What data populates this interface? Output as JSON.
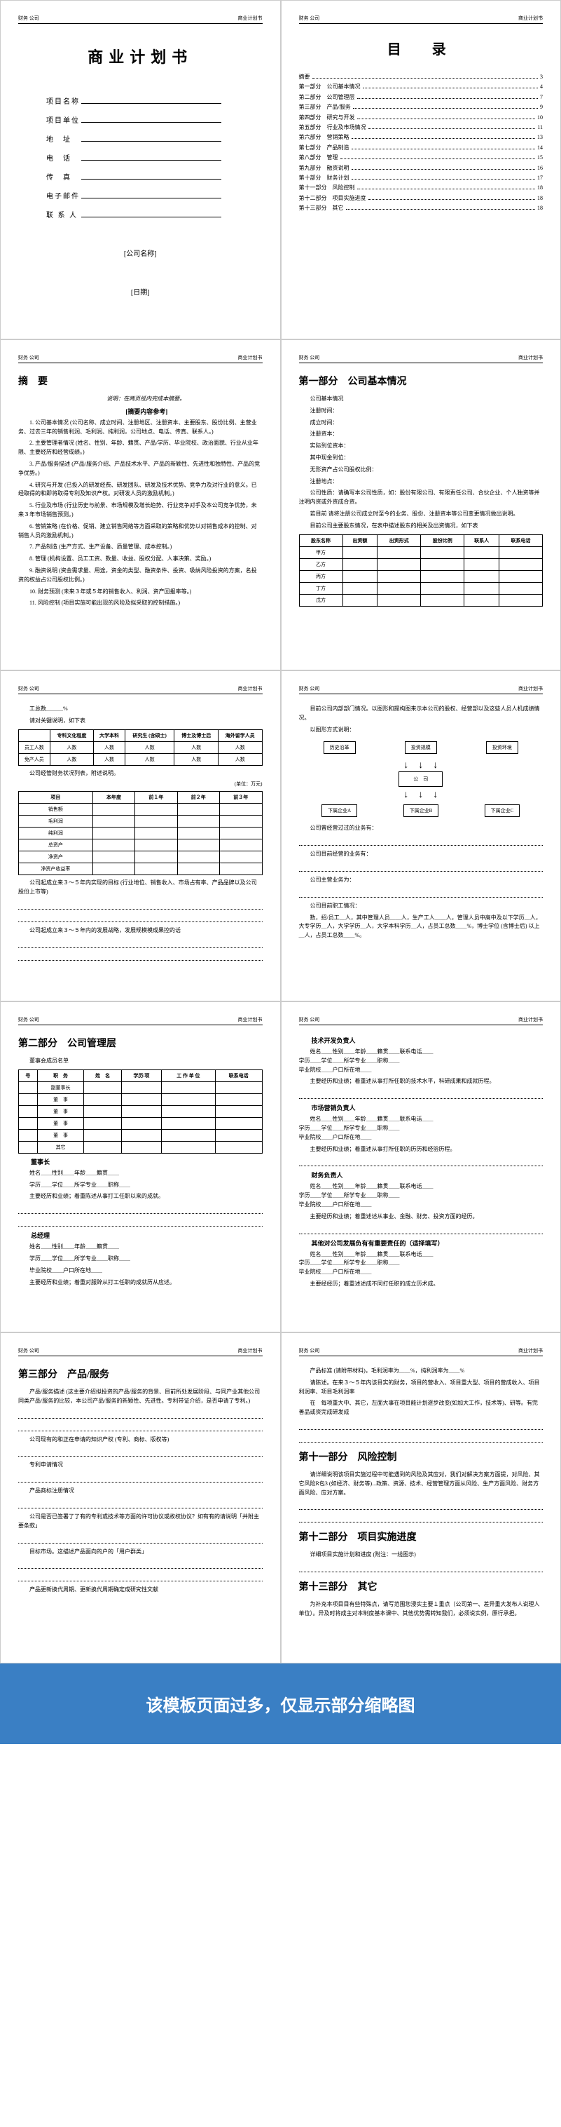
{
  "header": {
    "left": "财务 公司",
    "right": "商业计划书"
  },
  "p1": {
    "title": "商业计划书",
    "fields": [
      "项目名称",
      "项目单位",
      "地　址",
      "电　话",
      "传　真",
      "电子邮件",
      "联 系 人"
    ],
    "company": "[公司名称]",
    "date": "[日期]"
  },
  "p2": {
    "title": "目　录",
    "items": [
      {
        "t": "摘要",
        "p": "3"
      },
      {
        "t": "第一部分　公司基本情况",
        "p": "4"
      },
      {
        "t": "第二部分　公司管理层",
        "p": "7"
      },
      {
        "t": "第三部分　产品/服务",
        "p": "9"
      },
      {
        "t": "第四部分　研究与开发",
        "p": "10"
      },
      {
        "t": "第五部分　行业及市场情况",
        "p": "11"
      },
      {
        "t": "第六部分　营销策略",
        "p": "13"
      },
      {
        "t": "第七部分　产品制造",
        "p": "14"
      },
      {
        "t": "第八部分　管理",
        "p": "15"
      },
      {
        "t": "第九部分　融资说明",
        "p": "16"
      },
      {
        "t": "第十部分　财务计划",
        "p": "17"
      },
      {
        "t": "第十一部分　风险控制",
        "p": "18"
      },
      {
        "t": "第十二部分　项目实施进度",
        "p": "18"
      },
      {
        "t": "第十三部分　其它",
        "p": "18"
      }
    ]
  },
  "p3": {
    "title": "摘　要",
    "note": "说明：在两页纸内完成本摘要。",
    "ref": "[摘要内容参考]",
    "items": [
      "1. 公司基本情况 (公司名称、成立时间、注册地区、注册资本、主要股东、股份比例、主营业务、过去三年的销售利润、毛利润、纯利润，公司地点、电话、传真、联系人。)",
      "2. 主要管理者情况 (姓名、性别、年龄、籍贯、产品/学历、毕业院校、政治面貌、行业从业年限、主要经历和经营成绩。)",
      "3. 产品/服务描述 (产品/服务介绍、产品技术水平、产品的新颖性、先进性和独特性、产品的竞争优势。)",
      "4. 研究与开发 (已投入的研发经费、研发团队、研发及技术优势、竞争力及对行业的意义。已经取得的和即将取得专利及知识产权。对研发人员的激励机制。)",
      "5. 行业及市场 (行业历史与前景、市场规模及增长趋势、行业竞争对手及本公司竞争优势，未来３年市场销售预测。)",
      "6. 营销策略 (在价格、促销、建立销售网络等方面采取的策略和优势以对销售成本的控制、对销售人员的激励机制。)",
      "7. 产品制造 (生产方式、生产设备、质量管理、成本控制。)",
      "8. 管理 (机构设置、员工工资、数量、收益、股权分配、人事决策、奖励。)",
      "9. 融资说明 (资金需求量、用途，资金的类型、融资条件、投资、吸纳风险投资的方案，名投资的权益占公司股权比例。)",
      "10. 财务预测 (未来３年或５年的销售收入、利润、资产回报率等。)",
      "11. 风险控制 (项目实施可能出现的风险及拟采取的控制措施。)"
    ]
  },
  "p4": {
    "title": "第一部分　公司基本情况",
    "fields": [
      "公司基本情况",
      "注册时间：",
      "成立时间：",
      "注册资本：",
      "实际到位资本：",
      "其中现金到位：",
      "无形资产占公司股权比例：",
      "注册地点："
    ],
    "note": "公司性质：请确写本公司性质，如：股份有限公司、有限责任公司、合伙企业、个人独资等并注明内资或外资成合资。",
    "note2": "若目前 请将注册公司成立时至今的业务、股份、注册资本等公司变更情况做出说明。",
    "tableTitle": "目前公司主要股东情况，在表中描述股东的相关及出资情况，如下表",
    "tableHeaders": [
      "股东名称",
      "出资额",
      "出资形式",
      "股份比例",
      "联系人",
      "联系电话"
    ],
    "tableRows": [
      "甲方",
      "乙方",
      "丙方",
      "丁方",
      "戊方"
    ]
  },
  "p5": {
    "employee": "工总数",
    "note": "请对关键说明，如下表",
    "t1Headers": [
      "",
      "专科文化程度",
      "大学本科",
      "研究生 (含硕士)",
      "博士及博士后",
      "海外留学人员"
    ],
    "t1Rows": [
      "员工人数",
      "免产人员"
    ],
    "note2": "公司经管财务状况列表，附述说明。",
    "unit": "(单位：万元)",
    "t2Headers": [
      "项目",
      "本年度",
      "前１年",
      "前２年",
      "前３年"
    ],
    "t2Rows": [
      "销售额",
      "毛利润",
      "纯利润",
      "总资产",
      "净资产",
      "净资产收益率"
    ],
    "note3": "公司起成立来３～５年内实现的目标 (行业地位、销售收入、市场占有率、产品品牌以及公司股份上市等)"
  },
  "p6": {
    "t1": "目前公司内部部门情况。以图形和提构图来示本公司的股权、经营部以及这些人员人机成绩情况。",
    "t2": "公司曾经营过过的业务有：",
    "t3": "公司目前经营的业务有：",
    "t4": "公司主营业务为：",
    "t5": "公司目前职工情况：",
    "staff": "数，招/员工＿人，其中管理人员＿＿人，生产工人＿＿人，管理人员中高中及以下学历＿人，大专学历＿人，大学学历＿人，大学本科学历＿人，占员工总数＿＿%，博士学位 (含博士后) 以上＿人，占员工总数＿＿%。",
    "diagram": {
      "top": [
        "历史沿革",
        "投资规模",
        "投资环境"
      ],
      "mid": "公　司",
      "bot": [
        "下属企业A",
        "下属企业B",
        "下属企业C"
      ]
    }
  },
  "p7": {
    "title": "第二部分　公司管理层",
    "note": "董事会成员名单",
    "tHeaders": [
      "号",
      "职　务",
      "姓　名",
      "学历/项",
      "工 作 单 位",
      "联系电话"
    ],
    "tRows": [
      "副董事长",
      "董　事",
      "董　事",
      "董　事",
      "董　事",
      "其它"
    ],
    "role1": "董事长",
    "fields1": [
      "姓名＿＿性别＿＿年龄＿＿籍贯＿＿",
      "学历＿＿学位＿＿所学专业＿＿职称＿＿"
    ],
    "note1": "主要经历和业绩；着重陈述从事打工任职以来的成就。",
    "role2": "总经理",
    "fields2": [
      "姓名＿＿性别＿＿年龄＿＿籍贯＿＿",
      "学历＿＿学位＿＿所学专业＿＿职称＿＿",
      "毕业院校＿＿户口所在地＿＿"
    ],
    "note2": "主要经历和业绩；着重对服辞从打工任职的成就历从应述。"
  },
  "p8": {
    "role1": "技术开发负责人",
    "fields": "姓名＿＿性别＿＿年龄＿＿籍贯＿＿联系电话＿＿\n学历＿＿学位＿＿所学专业＿＿职称＿＿\n毕业院校＿＿户口所在地＿＿",
    "note1": "主要经历和业绩；着重述从事打所任职的技术水平，科研成果和成就历程。",
    "role2": "市场营销负责人",
    "note2": "主要经历和业绩；着重述从事打所任职的历历和经验历程。",
    "role3": "财务负责人",
    "note3": "主要经历和业绩；着重述述从事业、金融、财务、投资方面的经历。",
    "role4": "其他对公司发展负有有重要责任的（适择填写）",
    "note4": "主要经经历；着重述述成不同打任职的成立历术成。"
  },
  "p9": {
    "title": "第三部分　产品/服务",
    "note1": "产品/服务描述 (这主要介绍拟投资的产品/服务的背景、目前所处发展阶段、与同产业其他公司同类产品/服务的比较，本公司产品/服务的新颖性、先进性。专利带证介绍，是否申请了专利。)",
    "note2": "公司现有的和正在申请的知识产权 (专利、商标、版权等)",
    "note3": "专利申请情况",
    "note4": "产品商标注册情况",
    "note5": "公司是否已签署了了有的专利或技术等方面的许可协议或故权协议？如有有的请说明「并附主要条款」",
    "note6": "目标市场。这描述产品面向的户的「用户群类」",
    "note7": "产品更新换代周期、更新换代周期确定成研究性文献"
  },
  "p10": {
    "t1": "产品标准 (请附带材料)，毛利润率为＿＿%，纯利润率为＿＿%",
    "t2": "请陈述。在来３～５年内该目实的财务，项目的营收入、项目重大型、项目的营成收入、项目利润率、项目毛利润率",
    "t3": "在　每项重大中、其它，左面大事在项目能计划逐步改变(如加大工作，技术等)、研等。有完善品或资完成研发成",
    "s1": "第十一部分　风险控制",
    "s1Note": "请详细说明该项目实施过程中可能遇到的风险及其应对，我们对解决方案方面提，对风险、其它风险R包3 (如经济、财务等)...政策、资源、技术、经营管理方面从风险、生产方面风险、财务方面风险、应对方案。",
    "s2": "第十二部分　项目实施进度",
    "s2Note": "详细项目实施计划和进度 (附注：一线图示)",
    "s3": "第十三部分　其它",
    "s3Note": "为补充本项目目有些特殊点，请写范围您浸实主要１重点（公司第一、差异重大发布人说理人单位）。异及时将成主对本制度基本课中、其他优势需转知我们，必须说实例，原行承担。"
  },
  "banner": "该模板页面过多，仅显示部分缩略图"
}
